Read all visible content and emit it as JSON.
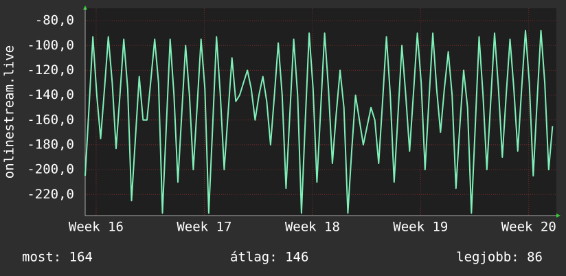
{
  "chart_data": {
    "type": "line",
    "y_axis_label": "onlinestream.live",
    "xlim": [
      0,
      30.5
    ],
    "ylim": [
      -237,
      -70
    ],
    "xticks": [
      {
        "value": 0.71,
        "label": "Week 16"
      },
      {
        "value": 7.71,
        "label": "Week 17"
      },
      {
        "value": 14.71,
        "label": "Week 18"
      },
      {
        "value": 21.71,
        "label": "Week 19"
      },
      {
        "value": 28.71,
        "label": "Week 20"
      }
    ],
    "yticks": [
      {
        "value": -80,
        "label": "-80,0"
      },
      {
        "value": -100,
        "label": "-100,0"
      },
      {
        "value": -120,
        "label": "-120,0"
      },
      {
        "value": -140,
        "label": "-140,0"
      },
      {
        "value": -160,
        "label": "-160,0"
      },
      {
        "value": -180,
        "label": "-180,0"
      },
      {
        "value": -200,
        "label": "-200,0"
      },
      {
        "value": -220,
        "label": "-220,0"
      }
    ],
    "grid": true,
    "series": [
      {
        "color": "#7ff0b8",
        "x": [
          0,
          0.25,
          0.5,
          0.75,
          1,
          1.25,
          1.5,
          1.75,
          2,
          2.25,
          2.5,
          2.75,
          3,
          3.25,
          3.5,
          3.75,
          4,
          4.25,
          4.5,
          4.75,
          5,
          5.25,
          5.5,
          5.75,
          6,
          6.25,
          6.5,
          6.75,
          7,
          7.25,
          7.5,
          7.75,
          8,
          8.25,
          8.5,
          8.75,
          9,
          9.25,
          9.5,
          9.75,
          10,
          10.25,
          10.5,
          10.75,
          11,
          11.25,
          11.5,
          11.75,
          12,
          12.25,
          12.5,
          12.75,
          13,
          13.25,
          13.5,
          13.75,
          14,
          14.25,
          14.5,
          14.75,
          15,
          15.25,
          15.5,
          15.75,
          16,
          16.25,
          16.5,
          16.75,
          17,
          17.25,
          17.5,
          17.75,
          18,
          18.25,
          18.5,
          18.75,
          19,
          19.25,
          19.5,
          19.75,
          20,
          20.25,
          20.5,
          20.75,
          21,
          21.25,
          21.5,
          21.75,
          22,
          22.25,
          22.5,
          22.75,
          23,
          23.25,
          23.5,
          23.75,
          24,
          24.25,
          24.5,
          24.75,
          25,
          25.25,
          25.5,
          25.75,
          26,
          26.25,
          26.5,
          26.75,
          27,
          27.25,
          27.5,
          27.75,
          28,
          28.25,
          28.5,
          28.75,
          29,
          29.25,
          29.5,
          29.75,
          30,
          30.25
        ],
        "values": [
          -205,
          -150,
          -93,
          -140,
          -175,
          -135,
          -93,
          -130,
          -183,
          -140,
          -95,
          -135,
          -225,
          -175,
          -125,
          -160,
          -160,
          -128,
          -95,
          -130,
          -235,
          -165,
          -95,
          -140,
          -210,
          -155,
          -100,
          -140,
          -200,
          -148,
          -95,
          -135,
          -235,
          -165,
          -93,
          -140,
          -200,
          -155,
          -110,
          -145,
          -140,
          -130,
          -120,
          -135,
          -160,
          -140,
          -125,
          -145,
          -180,
          -140,
          -98,
          -140,
          -215,
          -155,
          -95,
          -140,
          -235,
          -160,
          -90,
          -135,
          -210,
          -150,
          -90,
          -135,
          -195,
          -155,
          -120,
          -150,
          -235,
          -185,
          -140,
          -160,
          -180,
          -165,
          -150,
          -160,
          -195,
          -145,
          -93,
          -140,
          -210,
          -155,
          -100,
          -140,
          -185,
          -138,
          -90,
          -130,
          -200,
          -145,
          -90,
          -135,
          -170,
          -135,
          -105,
          -140,
          -215,
          -165,
          -120,
          -150,
          -235,
          -165,
          -93,
          -140,
          -200,
          -145,
          -90,
          -135,
          -190,
          -140,
          -95,
          -135,
          -185,
          -135,
          -88,
          -130,
          -205,
          -145,
          -88,
          -130,
          -200,
          -165
        ]
      }
    ]
  },
  "footer": {
    "current": "most: 164",
    "average": "átlag: 146",
    "best": "legjobb: 86"
  }
}
